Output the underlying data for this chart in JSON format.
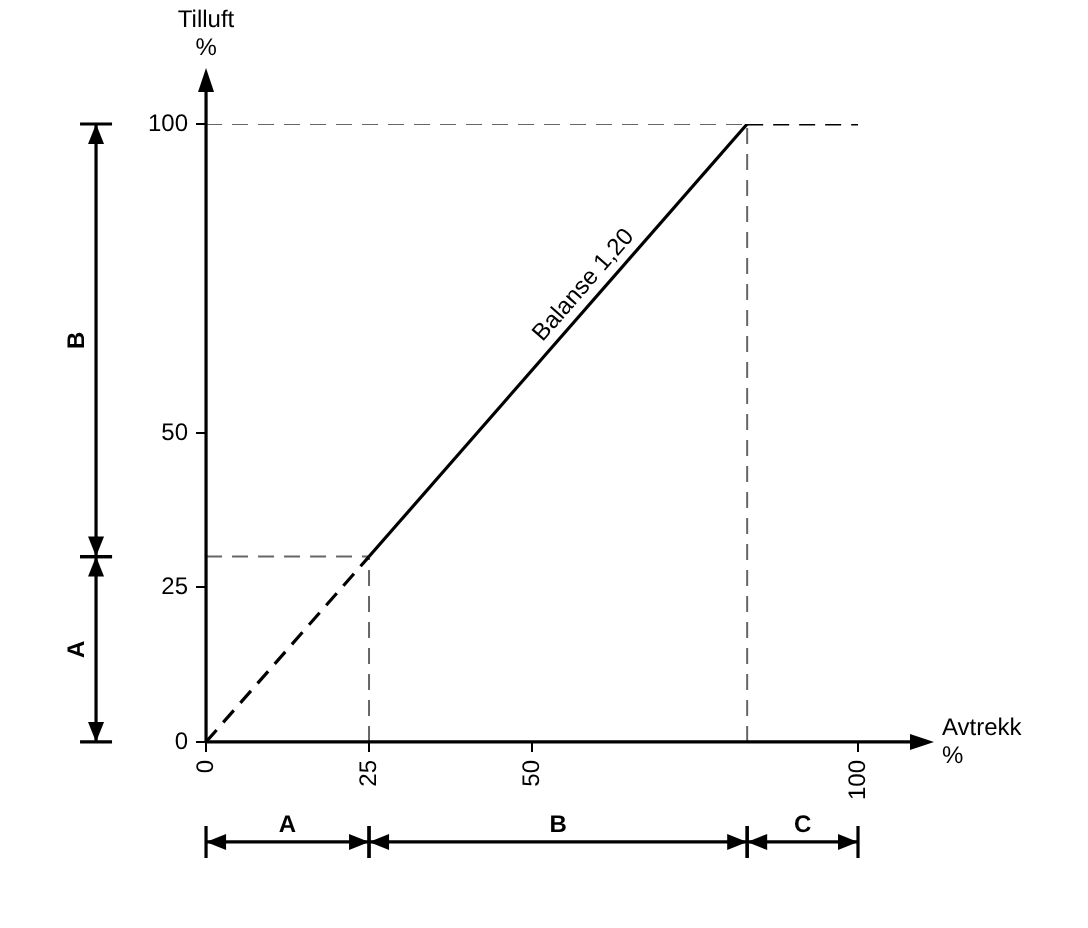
{
  "chart_data": {
    "type": "line",
    "xlabel": "Avtrekk %",
    "ylabel": "Tilluft %",
    "xlim": [
      0,
      100
    ],
    "ylim": [
      0,
      100
    ],
    "xticks": [
      0,
      25,
      50,
      100
    ],
    "yticks": [
      0,
      25,
      50,
      100
    ],
    "grid": false,
    "legend": false,
    "series": [
      {
        "x": [
          0,
          25
        ],
        "values": [
          0,
          30
        ],
        "color": "#000000",
        "line_style": "dashed"
      },
      {
        "x": [
          25,
          83
        ],
        "values": [
          30,
          100
        ],
        "color": "#000000",
        "line_style": "solid"
      },
      {
        "x": [
          83,
          100
        ],
        "values": [
          100,
          100
        ],
        "color": "#000000",
        "line_style": "dashed"
      },
      {
        "x": [
          25,
          25
        ],
        "values": [
          0,
          30
        ],
        "color": "#666666",
        "line_style": "dashed"
      },
      {
        "x": [
          0,
          25
        ],
        "values": [
          30,
          30
        ],
        "color": "#666666",
        "line_style": "dashed"
      },
      {
        "x": [
          83,
          83
        ],
        "values": [
          0,
          100
        ],
        "color": "#666666",
        "line_style": "dashed"
      },
      {
        "x": [
          0,
          83
        ],
        "values": [
          100,
          100
        ],
        "color": "#666666",
        "line_style": "dashed"
      }
    ],
    "annotations": [
      {
        "text": "Balanse 1,20",
        "x": 60,
        "y": 72
      },
      "A",
      "B",
      "C",
      "A",
      "B"
    ]
  }
}
